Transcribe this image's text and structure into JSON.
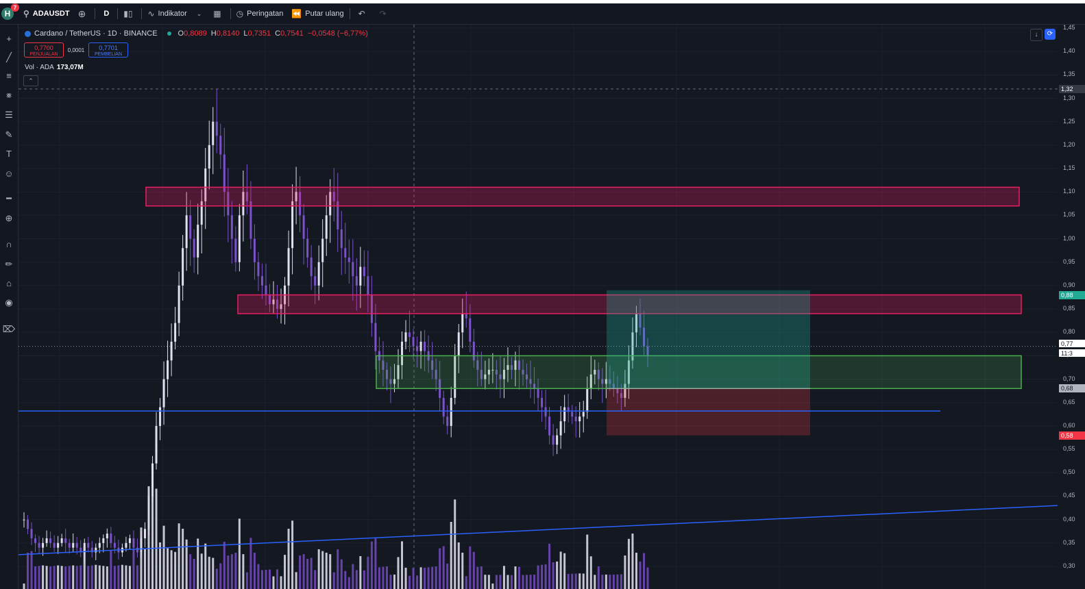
{
  "toolbar": {
    "avatar_letter": "H",
    "avatar_badge": "7",
    "symbol": "ADAUSDT",
    "add_symbol_icon": "plus-circle-icon",
    "interval": "D",
    "bar_type_icon": "candles-icon",
    "indicators_label": "Indikator",
    "layouts_icon": "grid-icon",
    "alerts_label": "Peringatan",
    "replay_label": "Putar ulang",
    "undo_icon": "undo-icon",
    "redo_icon": "redo-icon"
  },
  "left_tools": [
    "crosshair-icon",
    "trendline-icon",
    "horizontal-lines-icon",
    "pattern-icon",
    "fib-icon",
    "brush-icon",
    "text-icon",
    "emoji-icon",
    "ruler-icon",
    "zoom-icon",
    "magnet-icon",
    "lock-draw-icon",
    "lock-icon",
    "eye-icon",
    "trash-icon"
  ],
  "legend": {
    "title": "Cardano / TetherUS · 1D · BINANCE",
    "o_label": "O",
    "o_value": "0,8089",
    "h_label": "H",
    "h_value": "0,8140",
    "l_label": "L",
    "l_value": "0,7351",
    "c_label": "C",
    "c_value": "0,7541",
    "change": "−0,0548 (−6,77%)",
    "status_color": "#26a69a"
  },
  "trade": {
    "sell_price": "0,7700",
    "sell_label": "PENJUALAN",
    "spread": "0,0001",
    "buy_price": "0,7701",
    "buy_label": "PEMBELIAN"
  },
  "volume": {
    "label": "Vol · ADA",
    "value": "173,07M"
  },
  "collapse_icon": "chevron-up-icon",
  "price_axis": {
    "ticks": [
      "1,45",
      "1,40",
      "1,35",
      "1,30",
      "1,25",
      "1,20",
      "1,15",
      "1,10",
      "1,05",
      "1,00",
      "0,95",
      "0,90",
      "0,85",
      "0,80",
      "0,75",
      "0,70",
      "0,65",
      "0,60",
      "0,55",
      "0,50",
      "0,45",
      "0,40",
      "0,35",
      "0,30"
    ],
    "crosshair_price": "1,32",
    "current_price": "0,77",
    "countdown": "11:3",
    "target_label": "0,88",
    "entry_label": "0,68",
    "stop_label": "0,58",
    "target_color": "#22ab94",
    "stop_color": "#f23645"
  },
  "colors": {
    "up": "#e0e0f0",
    "down": "#7b52c9",
    "resistance_zone": "#e91e63",
    "support_zone": "#4caf50",
    "trendline": "#2962ff"
  },
  "chart_data": {
    "type": "candlestick",
    "symbol": "ADAUSDT",
    "interval": "1D",
    "ylim": [
      0.28,
      1.47
    ],
    "resistance_zones": [
      [
        1.07,
        1.11
      ],
      [
        0.84,
        0.88
      ]
    ],
    "support_zone": [
      0.68,
      0.75
    ],
    "horizontal_line": 0.632,
    "trendline": {
      "start": 0.325,
      "end": 0.43
    },
    "long_position": {
      "entry": 0.68,
      "target": 0.88,
      "stop": 0.58
    },
    "close_series": [
      0.4,
      0.38,
      0.36,
      0.35,
      0.34,
      0.35,
      0.36,
      0.35,
      0.34,
      0.35,
      0.36,
      0.35,
      0.34,
      0.35,
      0.34,
      0.33,
      0.35,
      0.34,
      0.33,
      0.34,
      0.35,
      0.36,
      0.37,
      0.35,
      0.34,
      0.33,
      0.34,
      0.35,
      0.36,
      0.34,
      0.33,
      0.36,
      0.38,
      0.45,
      0.52,
      0.6,
      0.64,
      0.7,
      0.74,
      0.78,
      0.82,
      0.9,
      0.98,
      1.05,
      1.0,
      0.96,
      1.03,
      1.08,
      1.15,
      1.2,
      1.25,
      1.22,
      1.18,
      1.1,
      1.05,
      1.0,
      0.95,
      1.05,
      1.1,
      1.08,
      1.0,
      0.95,
      0.92,
      0.9,
      0.88,
      0.86,
      0.87,
      0.85,
      0.86,
      0.9,
      0.98,
      1.08,
      1.1,
      1.05,
      1.0,
      0.96,
      0.92,
      0.9,
      0.95,
      1.0,
      1.05,
      1.1,
      1.08,
      1.02,
      0.98,
      0.96,
      0.95,
      0.92,
      0.9,
      0.94,
      0.92,
      0.88,
      0.82,
      0.76,
      0.74,
      0.72,
      0.7,
      0.69,
      0.7,
      0.73,
      0.78,
      0.8,
      0.79,
      0.77,
      0.76,
      0.78,
      0.76,
      0.74,
      0.72,
      0.7,
      0.66,
      0.62,
      0.6,
      0.66,
      0.75,
      0.8,
      0.84,
      0.83,
      0.78,
      0.74,
      0.72,
      0.7,
      0.71,
      0.72,
      0.72,
      0.71,
      0.7,
      0.72,
      0.73,
      0.72,
      0.74,
      0.72,
      0.71,
      0.7,
      0.69,
      0.68,
      0.66,
      0.64,
      0.62,
      0.58,
      0.56,
      0.58,
      0.61,
      0.64,
      0.63,
      0.62,
      0.61,
      0.62,
      0.63,
      0.68,
      0.71,
      0.72,
      0.7,
      0.69,
      0.7,
      0.69,
      0.68,
      0.67,
      0.66,
      0.69,
      0.74,
      0.8,
      0.84,
      0.81,
      0.77,
      0.75
    ]
  }
}
